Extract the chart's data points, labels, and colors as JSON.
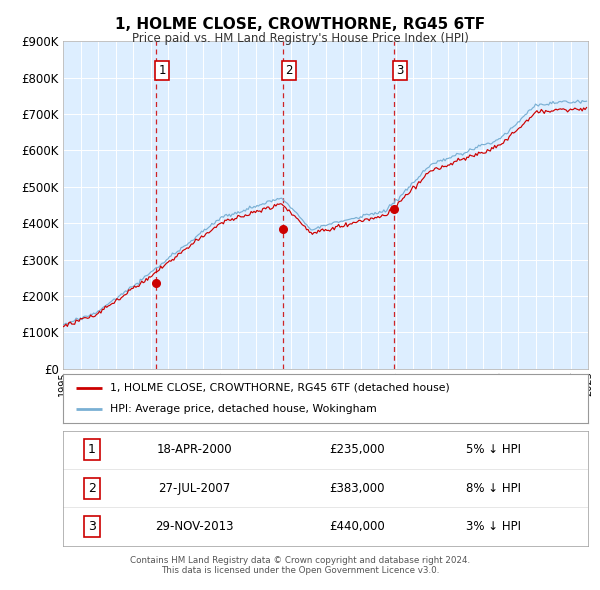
{
  "title": "1, HOLME CLOSE, CROWTHORNE, RG45 6TF",
  "subtitle": "Price paid vs. HM Land Registry's House Price Index (HPI)",
  "bg_color": "#ddeeff",
  "hpi_color": "#7ab0d4",
  "price_color": "#cc0000",
  "marker_color": "#cc0000",
  "vline_color": "#cc0000",
  "transactions": [
    {
      "num": 1,
      "date_str": "18-APR-2000",
      "date_x": 2000.29,
      "price": 235000,
      "pct": "5%",
      "dir": "↓"
    },
    {
      "num": 2,
      "date_str": "27-JUL-2007",
      "date_x": 2007.57,
      "price": 383000,
      "pct": "8%",
      "dir": "↓"
    },
    {
      "num": 3,
      "date_str": "29-NOV-2013",
      "date_x": 2013.91,
      "price": 440000,
      "pct": "3%",
      "dir": "↓"
    }
  ],
  "legend_house_label": "1, HOLME CLOSE, CROWTHORNE, RG45 6TF (detached house)",
  "legend_hpi_label": "HPI: Average price, detached house, Wokingham",
  "footer_line1": "Contains HM Land Registry data © Crown copyright and database right 2024.",
  "footer_line2": "This data is licensed under the Open Government Licence v3.0.",
  "xmin": 1995,
  "xmax": 2025,
  "ymin": 0,
  "ymax": 900000,
  "yticks": [
    0,
    100000,
    200000,
    300000,
    400000,
    500000,
    600000,
    700000,
    800000,
    900000
  ]
}
